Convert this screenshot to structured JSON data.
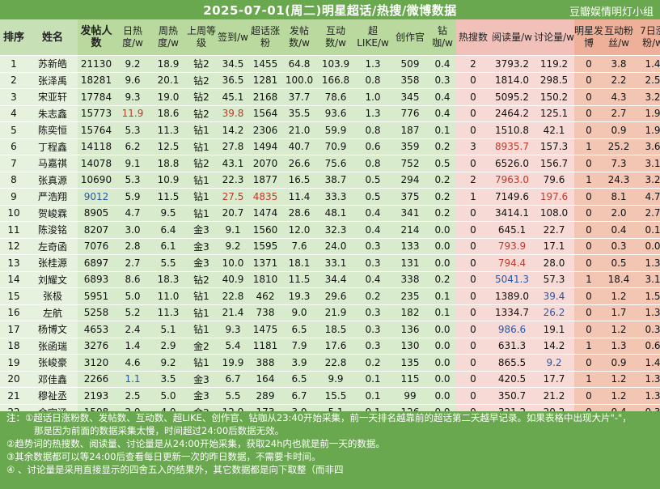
{
  "header": {
    "title": "2025-07-01(周二)明星超话/热搜/微博数据",
    "credit": "豆瓣娱情明灯小组"
  },
  "columns": [
    {
      "label": "排序",
      "group": "rank"
    },
    {
      "label": "姓名",
      "group": "name"
    },
    {
      "label": "发帖人数",
      "group": "green",
      "bold": true
    },
    {
      "label": "日热度/w",
      "group": "green"
    },
    {
      "label": "周热度/w",
      "group": "green"
    },
    {
      "label": "上周等级",
      "group": "green"
    },
    {
      "label": "签到/w",
      "group": "green"
    },
    {
      "label": "超话涨粉",
      "group": "green"
    },
    {
      "label": "发帖数/w",
      "group": "green"
    },
    {
      "label": "互动数/w",
      "group": "green"
    },
    {
      "label": "超LIKE/w",
      "group": "green"
    },
    {
      "label": "创作官",
      "group": "green"
    },
    {
      "label": "钻咖/w",
      "group": "green"
    },
    {
      "label": "热搜数",
      "group": "pink"
    },
    {
      "label": "阅读量/w",
      "group": "pink"
    },
    {
      "label": "讨论量/w",
      "group": "pink"
    },
    {
      "label": "明星发博",
      "group": "orange"
    },
    {
      "label": "互动粉丝/w",
      "group": "orange"
    },
    {
      "label": "7日涨粉/w",
      "group": "orange"
    }
  ],
  "rows": [
    [
      "1",
      "苏新皓",
      "21130",
      "9.2",
      "18.9",
      "钻2",
      "34.5",
      "1455",
      "64.8",
      "103.9",
      "1.3",
      "509",
      "0.4",
      "2",
      "3793.2",
      "119.2",
      "0",
      "3.8",
      "1.4"
    ],
    [
      "2",
      "张泽禹",
      "18281",
      "9.6",
      "20.1",
      "钻2",
      "36.5",
      "1281",
      "100.0",
      "166.8",
      "0.8",
      "358",
      "0.3",
      "0",
      "1814.0",
      "298.5",
      "0",
      "2.2",
      "2.5"
    ],
    [
      "3",
      "宋亚轩",
      "17784",
      "9.3",
      "19.0",
      "钻2",
      "45.1",
      "2168",
      "37.7",
      "78.6",
      "1.0",
      "345",
      "0.4",
      "0",
      "5095.2",
      "150.2",
      "0",
      "4.3",
      "3.2"
    ],
    [
      "4",
      "朱志鑫",
      "15773",
      "11.9",
      "18.6",
      "钻2",
      "39.8",
      "1564",
      "35.5",
      "93.6",
      "1.3",
      "776",
      "0.4",
      "0",
      "2464.2",
      "125.1",
      "0",
      "2.7",
      "1.9"
    ],
    [
      "5",
      "陈奕恒",
      "15764",
      "5.3",
      "11.3",
      "钻1",
      "14.2",
      "2306",
      "21.0",
      "59.9",
      "0.8",
      "187",
      "0.1",
      "0",
      "1510.8",
      "42.1",
      "0",
      "0.9",
      "1.9"
    ],
    [
      "6",
      "丁程鑫",
      "14118",
      "6.2",
      "12.5",
      "钻1",
      "27.8",
      "1494",
      "40.7",
      "70.9",
      "0.6",
      "359",
      "0.2",
      "3",
      "8935.7",
      "157.3",
      "1",
      "25.2",
      "3.6"
    ],
    [
      "7",
      "马嘉祺",
      "14078",
      "9.1",
      "18.8",
      "钻2",
      "43.1",
      "2070",
      "26.6",
      "75.6",
      "0.8",
      "752",
      "0.5",
      "0",
      "6526.0",
      "156.7",
      "0",
      "7.3",
      "3.1"
    ],
    [
      "8",
      "张真源",
      "10690",
      "5.3",
      "10.9",
      "钻1",
      "22.3",
      "1877",
      "16.5",
      "38.7",
      "0.5",
      "294",
      "0.2",
      "2",
      "7963.0",
      "79.6",
      "1",
      "24.3",
      "3.2"
    ],
    [
      "9",
      "严浩翔",
      "9012",
      "5.9",
      "11.5",
      "钻1",
      "27.5",
      "4835",
      "11.4",
      "33.3",
      "0.5",
      "375",
      "0.2",
      "1",
      "7149.6",
      "197.6",
      "0",
      "8.1",
      "4.7"
    ],
    [
      "10",
      "贺峻霖",
      "8905",
      "4.7",
      "9.5",
      "钻1",
      "20.7",
      "1474",
      "28.6",
      "48.1",
      "0.4",
      "341",
      "0.2",
      "0",
      "3414.1",
      "108.0",
      "0",
      "2.0",
      "2.7"
    ],
    [
      "11",
      "陈浚铭",
      "8207",
      "3.0",
      "6.4",
      "金3",
      "9.1",
      "1560",
      "12.0",
      "32.3",
      "0.4",
      "214",
      "0.0",
      "0",
      "645.1",
      "22.7",
      "0",
      "0.4",
      "0.1"
    ],
    [
      "12",
      "左奇函",
      "7076",
      "2.8",
      "6.1",
      "金3",
      "9.2",
      "1595",
      "7.6",
      "24.0",
      "0.3",
      "133",
      "0.0",
      "0",
      "793.9",
      "17.1",
      "0",
      "0.3",
      "0.0"
    ],
    [
      "13",
      "张桂源",
      "6897",
      "2.7",
      "5.5",
      "金3",
      "10.0",
      "1371",
      "18.1",
      "33.1",
      "0.3",
      "131",
      "0.0",
      "0",
      "794.4",
      "28.0",
      "0",
      "0.5",
      "1.3"
    ],
    [
      "14",
      "刘耀文",
      "6893",
      "8.6",
      "18.3",
      "钻2",
      "40.9",
      "1810",
      "11.5",
      "34.4",
      "0.4",
      "338",
      "0.2",
      "0",
      "5041.3",
      "57.3",
      "1",
      "18.4",
      "3.1"
    ],
    [
      "15",
      "张极",
      "5951",
      "5.0",
      "11.0",
      "钻1",
      "22.8",
      "462",
      "19.3",
      "29.6",
      "0.2",
      "235",
      "0.1",
      "0",
      "1389.0",
      "39.4",
      "0",
      "1.2",
      "1.5"
    ],
    [
      "16",
      "左航",
      "5258",
      "5.2",
      "11.3",
      "钻1",
      "21.4",
      "738",
      "9.0",
      "21.9",
      "0.3",
      "182",
      "0.1",
      "0",
      "1334.7",
      "26.2",
      "0",
      "1.7",
      "1.3"
    ],
    [
      "17",
      "杨博文",
      "4653",
      "2.4",
      "5.1",
      "钻1",
      "9.3",
      "1475",
      "6.5",
      "18.5",
      "0.3",
      "136",
      "0.0",
      "0",
      "986.6",
      "19.1",
      "0",
      "1.2",
      "0.3"
    ],
    [
      "18",
      "张函瑞",
      "3276",
      "1.4",
      "2.9",
      "金2",
      "5.4",
      "1181",
      "7.9",
      "17.6",
      "0.3",
      "130",
      "0.0",
      "0",
      "631.3",
      "14.2",
      "1",
      "1.3",
      "0.6"
    ],
    [
      "19",
      "张峻豪",
      "3120",
      "4.6",
      "9.2",
      "钻1",
      "19.9",
      "388",
      "3.9",
      "22.8",
      "0.2",
      "135",
      "0.0",
      "0",
      "865.5",
      "9.2",
      "0",
      "0.9",
      "1.4"
    ],
    [
      "20",
      "邓佳鑫",
      "2266",
      "1.1",
      "3.5",
      "金3",
      "6.7",
      "164",
      "6.5",
      "9.9",
      "0.1",
      "115",
      "0.0",
      "0",
      "420.5",
      "17.7",
      "1",
      "1.2",
      "1.3"
    ],
    [
      "21",
      "穆祉丞",
      "2193",
      "2.5",
      "5.0",
      "金3",
      "5.5",
      "289",
      "6.7",
      "15.5",
      "0.1",
      "99",
      "0.0",
      "0",
      "350.7",
      "21.2",
      "0",
      "1.2",
      "1.3"
    ],
    [
      "22",
      "余宇涵",
      "1508",
      "2.0",
      "4.0",
      "金2",
      "12.9",
      "173",
      "3.0",
      "5.1",
      "0.1",
      "126",
      "0.0",
      "0",
      "321.2",
      "20.2",
      "0",
      "0.4",
      "0.3"
    ]
  ],
  "highlights": {
    "red": [
      "3-3",
      "3-6",
      "8-6",
      "8-7",
      "5-14",
      "7-14",
      "11-14",
      "12-14",
      "8-15"
    ],
    "blue": [
      "8-2",
      "12-14",
      "13-14",
      "16-14",
      "19-3",
      "14-15",
      "15-15",
      "18-15"
    ]
  },
  "notes": {
    "line1": "注：①超话日涨粉数、发帖数、互动数、超LIKE、创作官、钻咖从23:40开始采集，前一天排名越靠前的超话第二天越早记录。如果表格中出现大片\"-\"，",
    "line2": "那是因为前面的数据采集太慢，时间超过24:00后数据无效。",
    "line3": "②趋势词的热搜数、阅读量、讨论量是从24:00开始采集，获取24h内也就是前一天的数据。",
    "line4": "③其余数据都可以等24:00后查看每日更新一次的昨日数据，不需要卡时间。",
    "line5": "④ 、讨论量是采用直接显示的四舍五入的结果外，其它数据都是向下取整（而非四"
  }
}
